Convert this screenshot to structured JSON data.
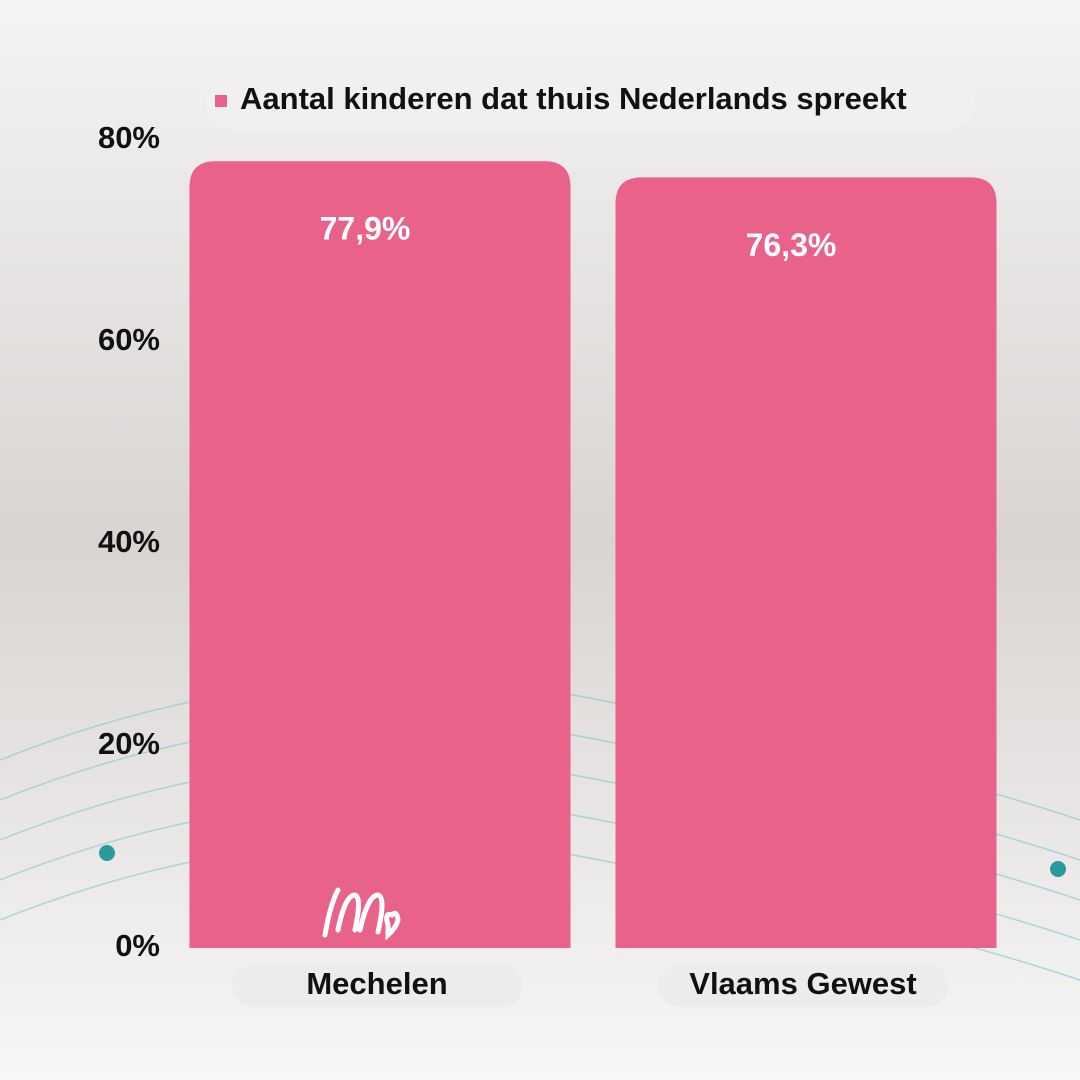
{
  "chart_data": {
    "type": "bar",
    "categories": [
      "Mechelen",
      "Vlaams Gewest"
    ],
    "series": [
      {
        "name": "Aantal kinderen dat thuis Nederlands spreekt",
        "color": "#e8628a",
        "values": [
          77.9,
          76.3
        ],
        "value_labels": [
          "77,9%",
          "76,3%"
        ]
      }
    ],
    "ylim": [
      0,
      80
    ],
    "yticks": [
      {
        "value": 0,
        "label": "0%"
      },
      {
        "value": 20,
        "label": "20%"
      },
      {
        "value": 40,
        "label": "40%"
      },
      {
        "value": 60,
        "label": "60%"
      },
      {
        "value": 80,
        "label": "80%"
      }
    ],
    "legend": "top"
  }
}
